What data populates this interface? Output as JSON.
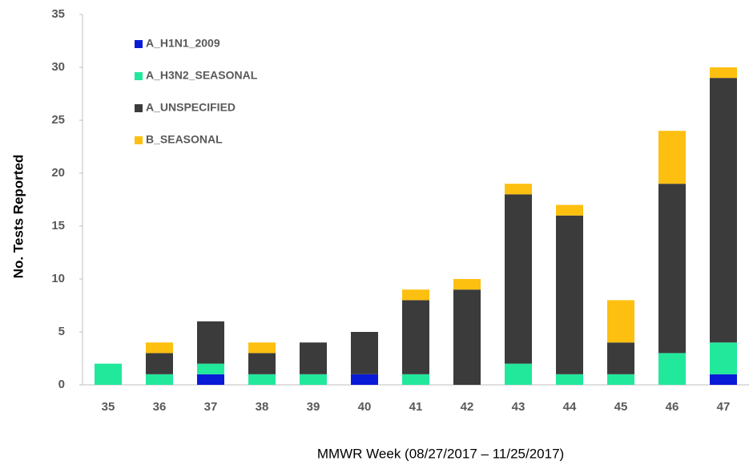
{
  "chart_data": {
    "type": "stacked_bar",
    "x_label": "MMWR Week (08/27/2017 – 11/25/2017)",
    "y_label": "No. Tests Reported",
    "categories": [
      "35",
      "36",
      "37",
      "38",
      "39",
      "40",
      "41",
      "42",
      "43",
      "44",
      "45",
      "46",
      "47"
    ],
    "series": [
      {
        "name": "A_H1N1_2009",
        "color": "#0a1bd8",
        "values": [
          0,
          0,
          1,
          0,
          0,
          1,
          0,
          0,
          0,
          0,
          0,
          0,
          1
        ]
      },
      {
        "name": "A_H3N2_SEASONAL",
        "color": "#22e89c",
        "values": [
          2,
          1,
          1,
          1,
          1,
          0,
          1,
          0,
          2,
          1,
          1,
          3,
          3
        ]
      },
      {
        "name": "A_UNSPECIFIED",
        "color": "#3b3b3b",
        "values": [
          0,
          2,
          4,
          2,
          3,
          4,
          7,
          9,
          16,
          15,
          3,
          16,
          25
        ]
      },
      {
        "name": "B_SEASONAL",
        "color": "#fdc010",
        "values": [
          0,
          1,
          0,
          1,
          0,
          0,
          1,
          1,
          1,
          1,
          4,
          5,
          1
        ]
      }
    ],
    "ylim": [
      0,
      35
    ],
    "yticks": [
      0,
      5,
      10,
      15,
      20,
      25,
      30,
      35
    ],
    "grid": false,
    "legend": "top-left"
  }
}
